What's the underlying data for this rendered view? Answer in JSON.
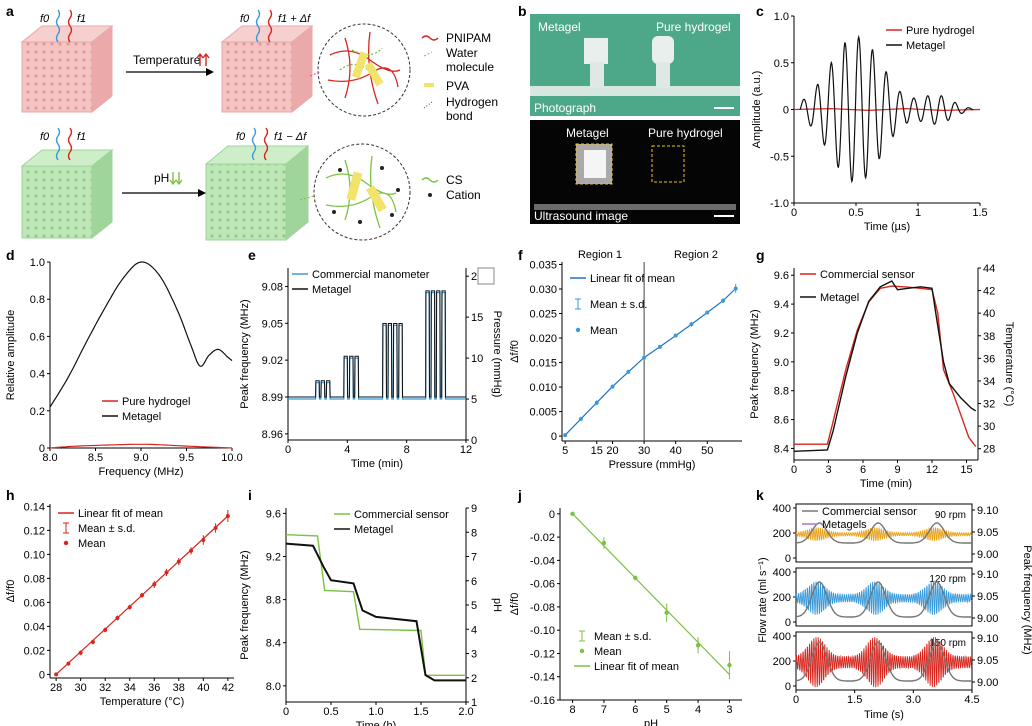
{
  "panel_letters": [
    "a",
    "b",
    "c",
    "d",
    "e",
    "f",
    "g",
    "h",
    "i",
    "j",
    "k"
  ],
  "colors": {
    "red": "#d7261e",
    "black": "#111111",
    "blue": "#3a9ad9",
    "green": "#7cc242",
    "orange": "#e8a31c",
    "pink_cube": "#f2b9b9",
    "green_cube": "#b6e0b0",
    "photo_bg": "#4da88a"
  },
  "schematic": {
    "top": {
      "f0": "f0",
      "f1": "f1",
      "f1_shift": "f1 + Δf",
      "stimulus": "Temperature",
      "legend": [
        "PNIPAM",
        "Water",
        "molecule",
        "PVA",
        "Hydrogen",
        "bond"
      ]
    },
    "bottom": {
      "f0": "f0",
      "f1": "f1",
      "f1_shift": "f1 − Δf",
      "stimulus": "pH",
      "legend": [
        "CS",
        "Cation"
      ]
    }
  },
  "photos": {
    "top_labels": [
      "Metagel",
      "Pure hydrogel",
      "Photograph"
    ],
    "bottom_labels": [
      "Metagel",
      "Pure hydrogel",
      "Ultrasound image"
    ]
  },
  "chart_data": [
    {
      "panel": "c",
      "type": "line",
      "xlabel": "Time (µs)",
      "ylabel": "Amplitude (a.u.)",
      "xlim": [
        0,
        1.5
      ],
      "ylim": [
        -1.0,
        1.0
      ],
      "xticks": [
        0,
        0.5,
        1.0,
        1.5
      ],
      "yticks": [
        -1.0,
        -0.5,
        0,
        0.5,
        1.0
      ],
      "series": [
        {
          "name": "Pure hydrogel",
          "color": "#d7261e",
          "points": [
            [
              0,
              0
            ],
            [
              0.3,
              0.01
            ],
            [
              0.6,
              -0.01
            ],
            [
              0.9,
              0.01
            ],
            [
              1.2,
              -0.01
            ],
            [
              1.5,
              0
            ]
          ]
        },
        {
          "name": "Metagel",
          "color": "#111111",
          "envelope_peak_time": 0.5,
          "peak_amplitude": 0.78,
          "min_amplitude": -0.83,
          "carrier_MHz": 9
        }
      ]
    },
    {
      "panel": "d",
      "type": "line",
      "xlabel": "Frequency (MHz)",
      "ylabel": "Relative amplitude",
      "xlim": [
        8.0,
        10.0
      ],
      "ylim": [
        0,
        1.0
      ],
      "xticks": [
        8.0,
        8.5,
        9.0,
        9.5,
        10.0
      ],
      "yticks": [
        0,
        0.2,
        0.4,
        0.6,
        0.8,
        1.0
      ],
      "series": [
        {
          "name": "Pure hydrogel",
          "color": "#d7261e",
          "points": [
            [
              8.0,
              0.0
            ],
            [
              8.3,
              0.01
            ],
            [
              9.0,
              0.02
            ],
            [
              9.5,
              0.01
            ],
            [
              10.0,
              0.0
            ]
          ]
        },
        {
          "name": "Metagel",
          "color": "#111111",
          "points": [
            [
              8.0,
              0.22
            ],
            [
              8.2,
              0.38
            ],
            [
              8.4,
              0.57
            ],
            [
              8.6,
              0.75
            ],
            [
              8.8,
              0.91
            ],
            [
              9.0,
              1.0
            ],
            [
              9.2,
              0.93
            ],
            [
              9.4,
              0.74
            ],
            [
              9.55,
              0.55
            ],
            [
              9.65,
              0.44
            ],
            [
              9.75,
              0.5
            ],
            [
              9.85,
              0.53
            ],
            [
              9.95,
              0.49
            ],
            [
              10.0,
              0.47
            ]
          ]
        }
      ]
    },
    {
      "panel": "e",
      "type": "line",
      "xlabel": "Time (min)",
      "ylabel": "Peak frequency (MHz)",
      "y2label": "Pressure (mmHg)",
      "xlim": [
        0,
        12
      ],
      "ylim": [
        8.955,
        9.095
      ],
      "y2lim": [
        0,
        21
      ],
      "xticks": [
        0,
        4,
        8,
        12
      ],
      "yticks": [
        8.96,
        8.99,
        9.02,
        9.05,
        9.08
      ],
      "y2ticks": [
        0,
        5,
        10,
        15,
        20
      ],
      "series": [
        {
          "name": "Commercial manometer",
          "color": "#3a9ad9",
          "axis": "right"
        },
        {
          "name": "Metagel",
          "color": "#111111",
          "axis": "left"
        }
      ],
      "pulse_groups": [
        {
          "start": 0.6,
          "count": 3,
          "peak_pressure": 4
        },
        {
          "start": 2.0,
          "count": 3,
          "peak_pressure": 7
        },
        {
          "start": 3.9,
          "count": 3,
          "peak_pressure": 10
        },
        {
          "start": 6.5,
          "count": 4,
          "peak_pressure": 14
        },
        {
          "start": 9.4,
          "count": 4,
          "peak_pressure": 18
        }
      ],
      "baseline_pressure": 5,
      "baseline_frequency": 8.99
    },
    {
      "panel": "f",
      "type": "scatter",
      "xlabel": "Pressure (mmHg)",
      "ylabel": "Δf/f0",
      "xlim": [
        4,
        61
      ],
      "ylim": [
        -0.001,
        0.0355
      ],
      "xticks": [
        5,
        15,
        20,
        30,
        40,
        50
      ],
      "yticks": [
        0,
        0.005,
        0.01,
        0.015,
        0.02,
        0.025,
        0.03,
        0.035
      ],
      "regions": [
        "Region 1",
        "Region 2"
      ],
      "region_boundary": 30,
      "legend": [
        "Linear fit of mean",
        "Mean ± s.d.",
        "Mean"
      ],
      "x": [
        5,
        10,
        15,
        20,
        25,
        30,
        35,
        40,
        45,
        50,
        55,
        59
      ],
      "y": [
        0.0002,
        0.0035,
        0.0068,
        0.0101,
        0.0131,
        0.016,
        0.0182,
        0.0205,
        0.0228,
        0.0252,
        0.0276,
        0.0301
      ],
      "err": [
        0.0004,
        0.0004,
        0.0005,
        0.0004,
        0.0004,
        0.0005,
        0.0004,
        0.0004,
        0.0005,
        0.0004,
        0.0005,
        0.0009
      ]
    },
    {
      "panel": "g",
      "type": "line",
      "xlabel": "Time (min)",
      "ylabel": "Peak frequency (MHz)",
      "y2label": "Temperature (°C)",
      "xlim": [
        0,
        16
      ],
      "ylim": [
        8.32,
        9.65
      ],
      "y2lim": [
        27,
        44
      ],
      "xticks": [
        0,
        3,
        6,
        9,
        12,
        15
      ],
      "yticks": [
        8.4,
        8.6,
        8.8,
        9.0,
        9.2,
        9.4,
        9.6
      ],
      "y2ticks": [
        28,
        30,
        32,
        34,
        36,
        38,
        40,
        42,
        44
      ],
      "series": [
        {
          "name": "Commercial sensor",
          "color": "#d7261e",
          "axis": "right",
          "points": [
            [
              0,
              28.4
            ],
            [
              2.9,
              28.4
            ],
            [
              3.3,
              30
            ],
            [
              4.5,
              35
            ],
            [
              5.5,
              38.5
            ],
            [
              6.5,
              41
            ],
            [
              7.5,
              42.2
            ],
            [
              8.5,
              42.4
            ],
            [
              10,
              42.3
            ],
            [
              12,
              42.1
            ],
            [
              12.5,
              40
            ],
            [
              13,
              35
            ],
            [
              13.8,
              33
            ],
            [
              14.5,
              31
            ],
            [
              15.2,
              29
            ],
            [
              15.8,
              28.2
            ]
          ]
        },
        {
          "name": "Metagel",
          "color": "#111111",
          "axis": "left",
          "points": [
            [
              0,
              8.38
            ],
            [
              2.9,
              8.39
            ],
            [
              3.4,
              8.52
            ],
            [
              4.5,
              8.9
            ],
            [
              5.5,
              9.2
            ],
            [
              6.5,
              9.42
            ],
            [
              7.5,
              9.52
            ],
            [
              8.5,
              9.56
            ],
            [
              9,
              9.5
            ],
            [
              10,
              9.51
            ],
            [
              11,
              9.52
            ],
            [
              12,
              9.51
            ],
            [
              12.4,
              9.3
            ],
            [
              13,
              9.0
            ],
            [
              13.5,
              8.85
            ],
            [
              14.5,
              8.75
            ],
            [
              15.4,
              8.68
            ],
            [
              15.8,
              8.66
            ]
          ]
        }
      ]
    },
    {
      "panel": "h",
      "type": "scatter",
      "xlabel": "Temperature (°C)",
      "ylabel": "Δf/f0",
      "xlim": [
        27.5,
        42.5
      ],
      "ylim": [
        -0.003,
        0.142
      ],
      "xticks": [
        28,
        30,
        32,
        34,
        36,
        38,
        40,
        42
      ],
      "yticks": [
        0,
        0.02,
        0.04,
        0.06,
        0.08,
        0.1,
        0.12,
        0.14
      ],
      "legend": [
        "Linear fit of mean",
        "Mean ± s.d.",
        "Mean"
      ],
      "x": [
        28,
        29,
        30,
        31,
        32,
        33,
        34,
        35,
        36,
        37,
        38,
        39,
        40,
        41,
        42
      ],
      "y": [
        0.0,
        0.009,
        0.018,
        0.027,
        0.037,
        0.047,
        0.056,
        0.066,
        0.075,
        0.085,
        0.094,
        0.103,
        0.112,
        0.122,
        0.132
      ],
      "err": [
        0.001,
        0.001,
        0.002,
        0.002,
        0.002,
        0.002,
        0.002,
        0.002,
        0.003,
        0.003,
        0.003,
        0.003,
        0.004,
        0.004,
        0.005
      ]
    },
    {
      "panel": "i",
      "type": "line",
      "xlabel": "Time (h)",
      "ylabel": "Peak frequency (MHz)",
      "y2label": "pH",
      "xlim": [
        0,
        2.0
      ],
      "ylim": [
        7.85,
        9.65
      ],
      "y2lim": [
        1,
        9
      ],
      "xticks": [
        0,
        0.5,
        1.0,
        1.5,
        2.0
      ],
      "yticks": [
        8.0,
        8.4,
        8.8,
        9.2,
        9.6
      ],
      "y2ticks": [
        1,
        2,
        3,
        4,
        5,
        6,
        7,
        8,
        9
      ],
      "series": [
        {
          "name": "Commercial sensor",
          "color": "#7cc242",
          "axis": "right",
          "points": [
            [
              0,
              7.9
            ],
            [
              0.35,
              7.85
            ],
            [
              0.43,
              5.6
            ],
            [
              0.75,
              5.55
            ],
            [
              0.82,
              4.0
            ],
            [
              1.5,
              3.95
            ],
            [
              1.55,
              2.1
            ],
            [
              2.0,
              2.1
            ]
          ]
        },
        {
          "name": "Metagel",
          "color": "#111111",
          "axis": "left",
          "points": [
            [
              0,
              9.32
            ],
            [
              0.3,
              9.3
            ],
            [
              0.42,
              9.1
            ],
            [
              0.5,
              8.98
            ],
            [
              0.75,
              8.95
            ],
            [
              0.85,
              8.7
            ],
            [
              1.0,
              8.64
            ],
            [
              1.45,
              8.6
            ],
            [
              1.55,
              8.1
            ],
            [
              1.65,
              8.05
            ],
            [
              2.0,
              8.05
            ]
          ]
        }
      ]
    },
    {
      "panel": "j",
      "type": "scatter",
      "xlabel": "pH",
      "ylabel": "Δf/f0",
      "xlim": [
        8.4,
        2.6
      ],
      "ylim": [
        -0.16,
        0.005
      ],
      "xticks": [
        8,
        7,
        6,
        5,
        4,
        3
      ],
      "yticks": [
        0,
        -0.02,
        -0.04,
        -0.06,
        -0.08,
        -0.1,
        -0.12,
        -0.14,
        -0.16
      ],
      "legend": [
        "Mean ± s.d.",
        "Mean",
        "Linear fit of mean"
      ],
      "x": [
        8,
        7,
        6,
        5,
        4,
        3
      ],
      "y": [
        0.0,
        -0.025,
        -0.055,
        -0.085,
        -0.113,
        -0.13
      ],
      "err": [
        0.001,
        0.005,
        0.002,
        0.008,
        0.007,
        0.012
      ]
    },
    {
      "panel": "k",
      "type": "line",
      "xlabel": "Time (s)",
      "ylabel": "Flow rate (ml s⁻¹)",
      "y2label": "Peak frequency (MHz)",
      "xlim": [
        0,
        4.5
      ],
      "xticks": [
        0,
        1.5,
        3.0,
        4.5
      ],
      "legend": [
        "Commercial sensor",
        "Metagels"
      ],
      "subplots": [
        {
          "label": "90 rpm",
          "color": "#e8a31c",
          "ylim": [
            0,
            400
          ],
          "yticks": [
            0,
            200,
            400
          ],
          "y2ticks": [
            9.0,
            9.05,
            9.1
          ],
          "cycles": 3,
          "flow_peak": 280,
          "flow_base": 120,
          "freq_amp": 0.012
        },
        {
          "label": "120 rpm",
          "color": "#3a9ad9",
          "ylim": [
            0,
            400
          ],
          "yticks": [
            0,
            200,
            400
          ],
          "y2ticks": [
            9.0,
            9.05,
            9.1
          ],
          "cycles": 3,
          "flow_peak": 320,
          "flow_base": 40,
          "freq_amp": 0.03
        },
        {
          "label": "150 rpm",
          "color": "#d7261e",
          "ylim": [
            0,
            400
          ],
          "yticks": [
            0,
            200,
            400
          ],
          "y2ticks": [
            9.0,
            9.05,
            9.1
          ],
          "cycles": 3,
          "flow_peak": 350,
          "flow_base": 40,
          "freq_amp": 0.045
        }
      ]
    }
  ]
}
